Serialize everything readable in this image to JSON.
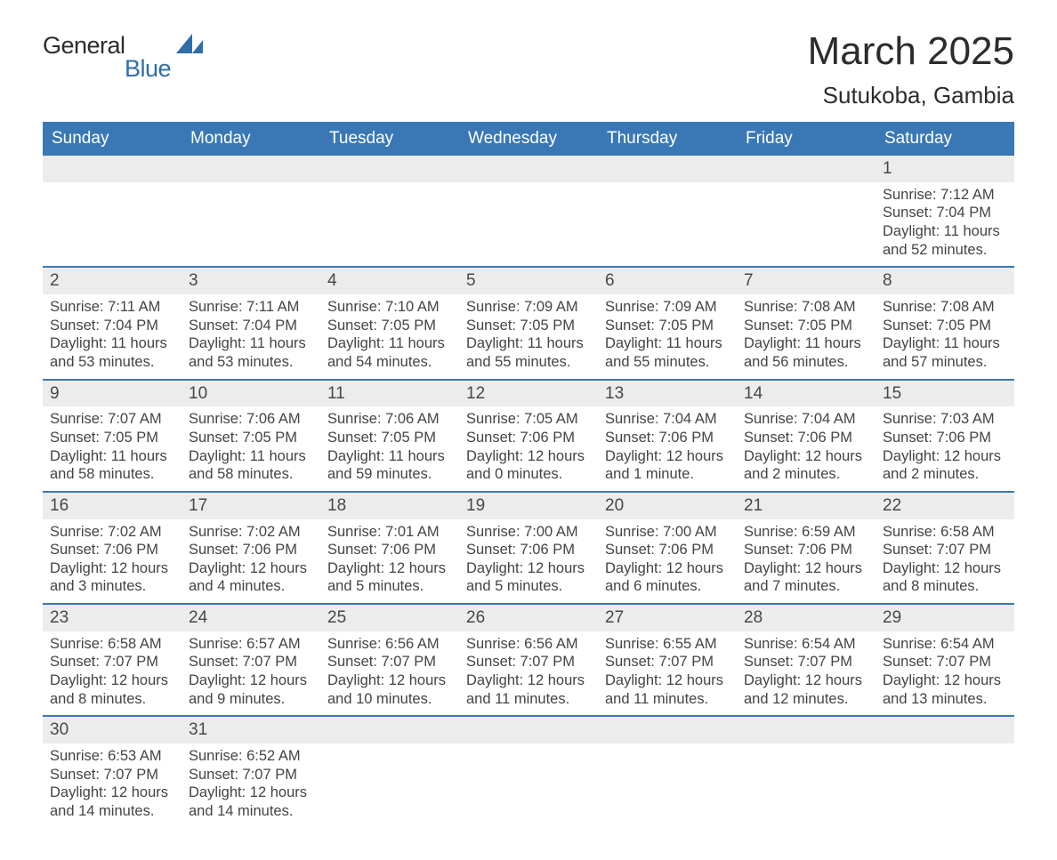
{
  "logo": {
    "text_general": "General",
    "text_blue": "Blue",
    "mark_color": "#2f6ea9"
  },
  "title": {
    "month": "March 2025",
    "location": "Sutukoba, Gambia"
  },
  "layout": {
    "columns": 7
  },
  "colors": {
    "header_bg": "#3a78b5",
    "header_text": "#ffffff",
    "daynum_bg": "#ececec",
    "body_text": "#444444",
    "rule": "#3a78b5"
  },
  "day_headers": [
    "Sunday",
    "Monday",
    "Tuesday",
    "Wednesday",
    "Thursday",
    "Friday",
    "Saturday"
  ],
  "labels": {
    "sunrise": "Sunrise:",
    "sunset": "Sunset:",
    "daylight": "Daylight:"
  },
  "weeks": [
    [
      {
        "empty": true
      },
      {
        "empty": true
      },
      {
        "empty": true
      },
      {
        "empty": true
      },
      {
        "empty": true
      },
      {
        "empty": true
      },
      {
        "day": "1",
        "sunrise": "7:12 AM",
        "sunset": "7:04 PM",
        "daylight": "11 hours and 52 minutes."
      }
    ],
    [
      {
        "day": "2",
        "sunrise": "7:11 AM",
        "sunset": "7:04 PM",
        "daylight": "11 hours and 53 minutes."
      },
      {
        "day": "3",
        "sunrise": "7:11 AM",
        "sunset": "7:04 PM",
        "daylight": "11 hours and 53 minutes."
      },
      {
        "day": "4",
        "sunrise": "7:10 AM",
        "sunset": "7:05 PM",
        "daylight": "11 hours and 54 minutes."
      },
      {
        "day": "5",
        "sunrise": "7:09 AM",
        "sunset": "7:05 PM",
        "daylight": "11 hours and 55 minutes."
      },
      {
        "day": "6",
        "sunrise": "7:09 AM",
        "sunset": "7:05 PM",
        "daylight": "11 hours and 55 minutes."
      },
      {
        "day": "7",
        "sunrise": "7:08 AM",
        "sunset": "7:05 PM",
        "daylight": "11 hours and 56 minutes."
      },
      {
        "day": "8",
        "sunrise": "7:08 AM",
        "sunset": "7:05 PM",
        "daylight": "11 hours and 57 minutes."
      }
    ],
    [
      {
        "day": "9",
        "sunrise": "7:07 AM",
        "sunset": "7:05 PM",
        "daylight": "11 hours and 58 minutes."
      },
      {
        "day": "10",
        "sunrise": "7:06 AM",
        "sunset": "7:05 PM",
        "daylight": "11 hours and 58 minutes."
      },
      {
        "day": "11",
        "sunrise": "7:06 AM",
        "sunset": "7:05 PM",
        "daylight": "11 hours and 59 minutes."
      },
      {
        "day": "12",
        "sunrise": "7:05 AM",
        "sunset": "7:06 PM",
        "daylight": "12 hours and 0 minutes."
      },
      {
        "day": "13",
        "sunrise": "7:04 AM",
        "sunset": "7:06 PM",
        "daylight": "12 hours and 1 minute."
      },
      {
        "day": "14",
        "sunrise": "7:04 AM",
        "sunset": "7:06 PM",
        "daylight": "12 hours and 2 minutes."
      },
      {
        "day": "15",
        "sunrise": "7:03 AM",
        "sunset": "7:06 PM",
        "daylight": "12 hours and 2 minutes."
      }
    ],
    [
      {
        "day": "16",
        "sunrise": "7:02 AM",
        "sunset": "7:06 PM",
        "daylight": "12 hours and 3 minutes."
      },
      {
        "day": "17",
        "sunrise": "7:02 AM",
        "sunset": "7:06 PM",
        "daylight": "12 hours and 4 minutes."
      },
      {
        "day": "18",
        "sunrise": "7:01 AM",
        "sunset": "7:06 PM",
        "daylight": "12 hours and 5 minutes."
      },
      {
        "day": "19",
        "sunrise": "7:00 AM",
        "sunset": "7:06 PM",
        "daylight": "12 hours and 5 minutes."
      },
      {
        "day": "20",
        "sunrise": "7:00 AM",
        "sunset": "7:06 PM",
        "daylight": "12 hours and 6 minutes."
      },
      {
        "day": "21",
        "sunrise": "6:59 AM",
        "sunset": "7:06 PM",
        "daylight": "12 hours and 7 minutes."
      },
      {
        "day": "22",
        "sunrise": "6:58 AM",
        "sunset": "7:07 PM",
        "daylight": "12 hours and 8 minutes."
      }
    ],
    [
      {
        "day": "23",
        "sunrise": "6:58 AM",
        "sunset": "7:07 PM",
        "daylight": "12 hours and 8 minutes."
      },
      {
        "day": "24",
        "sunrise": "6:57 AM",
        "sunset": "7:07 PM",
        "daylight": "12 hours and 9 minutes."
      },
      {
        "day": "25",
        "sunrise": "6:56 AM",
        "sunset": "7:07 PM",
        "daylight": "12 hours and 10 minutes."
      },
      {
        "day": "26",
        "sunrise": "6:56 AM",
        "sunset": "7:07 PM",
        "daylight": "12 hours and 11 minutes."
      },
      {
        "day": "27",
        "sunrise": "6:55 AM",
        "sunset": "7:07 PM",
        "daylight": "12 hours and 11 minutes."
      },
      {
        "day": "28",
        "sunrise": "6:54 AM",
        "sunset": "7:07 PM",
        "daylight": "12 hours and 12 minutes."
      },
      {
        "day": "29",
        "sunrise": "6:54 AM",
        "sunset": "7:07 PM",
        "daylight": "12 hours and 13 minutes."
      }
    ],
    [
      {
        "day": "30",
        "sunrise": "6:53 AM",
        "sunset": "7:07 PM",
        "daylight": "12 hours and 14 minutes."
      },
      {
        "day": "31",
        "sunrise": "6:52 AM",
        "sunset": "7:07 PM",
        "daylight": "12 hours and 14 minutes."
      },
      {
        "empty": true
      },
      {
        "empty": true
      },
      {
        "empty": true
      },
      {
        "empty": true
      },
      {
        "empty": true
      }
    ]
  ]
}
